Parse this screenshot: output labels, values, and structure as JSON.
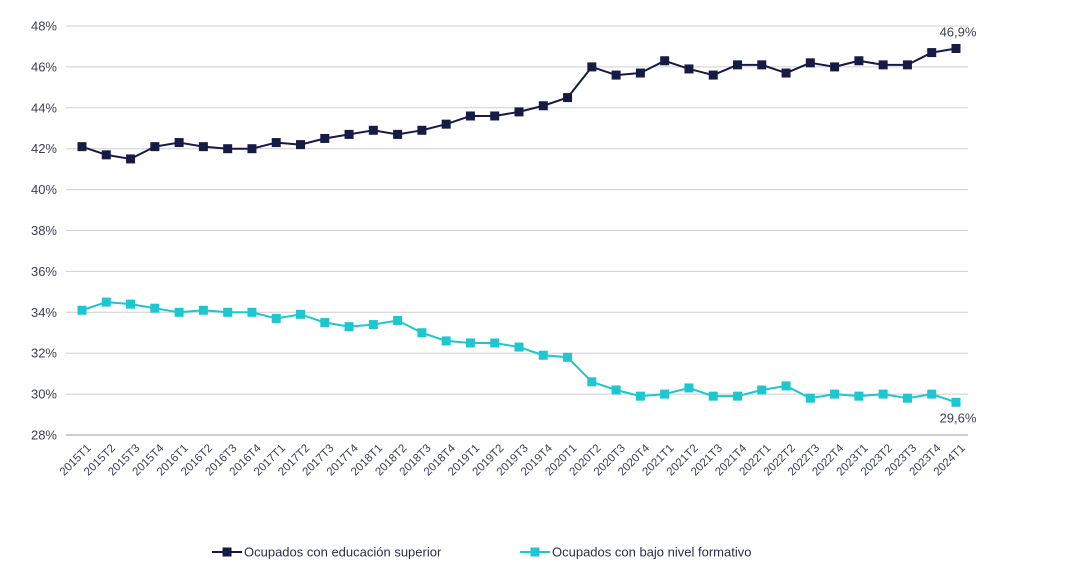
{
  "chart_data": {
    "type": "line",
    "categories": [
      "2015T1",
      "2015T2",
      "2015T3",
      "2015T4",
      "2016T1",
      "2016T2",
      "2016T3",
      "2016T4",
      "2017T1",
      "2017T2",
      "2017T3",
      "2017T4",
      "2018T1",
      "2018T2",
      "2018T3",
      "2018T4",
      "2019T1",
      "2019T2",
      "2019T3",
      "2019T4",
      "2020T1",
      "2020T2",
      "2020T3",
      "2020T4",
      "2021T1",
      "2021T2",
      "2021T3",
      "2021T4",
      "2022T1",
      "2022T2",
      "2022T3",
      "2022T4",
      "2023T1",
      "2023T2",
      "2023T3",
      "2023T4",
      "2024T1"
    ],
    "series": [
      {
        "name": "Ocupados con educación superior",
        "color": "#161b45",
        "values": [
          42.1,
          41.7,
          41.5,
          42.1,
          42.3,
          42.1,
          42.0,
          42.0,
          42.3,
          42.2,
          42.5,
          42.7,
          42.9,
          42.7,
          42.9,
          43.2,
          43.6,
          43.6,
          43.8,
          44.1,
          44.5,
          46.0,
          45.6,
          45.7,
          46.3,
          45.9,
          45.6,
          46.1,
          46.1,
          45.7,
          46.2,
          46.0,
          46.3,
          46.1,
          46.1,
          46.7,
          46.9
        ]
      },
      {
        "name": "Ocupados con bajo nivel formativo",
        "color": "#1cc7cf",
        "values": [
          34.1,
          34.5,
          34.4,
          34.2,
          34.0,
          34.1,
          34.0,
          34.0,
          33.7,
          33.9,
          33.5,
          33.3,
          33.4,
          33.6,
          33.0,
          32.6,
          32.5,
          32.5,
          32.3,
          31.9,
          31.8,
          30.6,
          30.2,
          29.9,
          30.0,
          30.3,
          29.9,
          29.9,
          30.2,
          30.4,
          29.8,
          30.0,
          29.9,
          30.0,
          29.8,
          30.0,
          29.6
        ]
      }
    ],
    "y_ticks": [
      "28%",
      "30%",
      "32%",
      "34%",
      "36%",
      "38%",
      "40%",
      "42%",
      "44%",
      "46%",
      "48%"
    ],
    "ylim": [
      28,
      48
    ],
    "grid": true,
    "legend_position": "bottom",
    "annotations": {
      "last_top": "46,9%",
      "last_bottom": "29,6%"
    }
  }
}
